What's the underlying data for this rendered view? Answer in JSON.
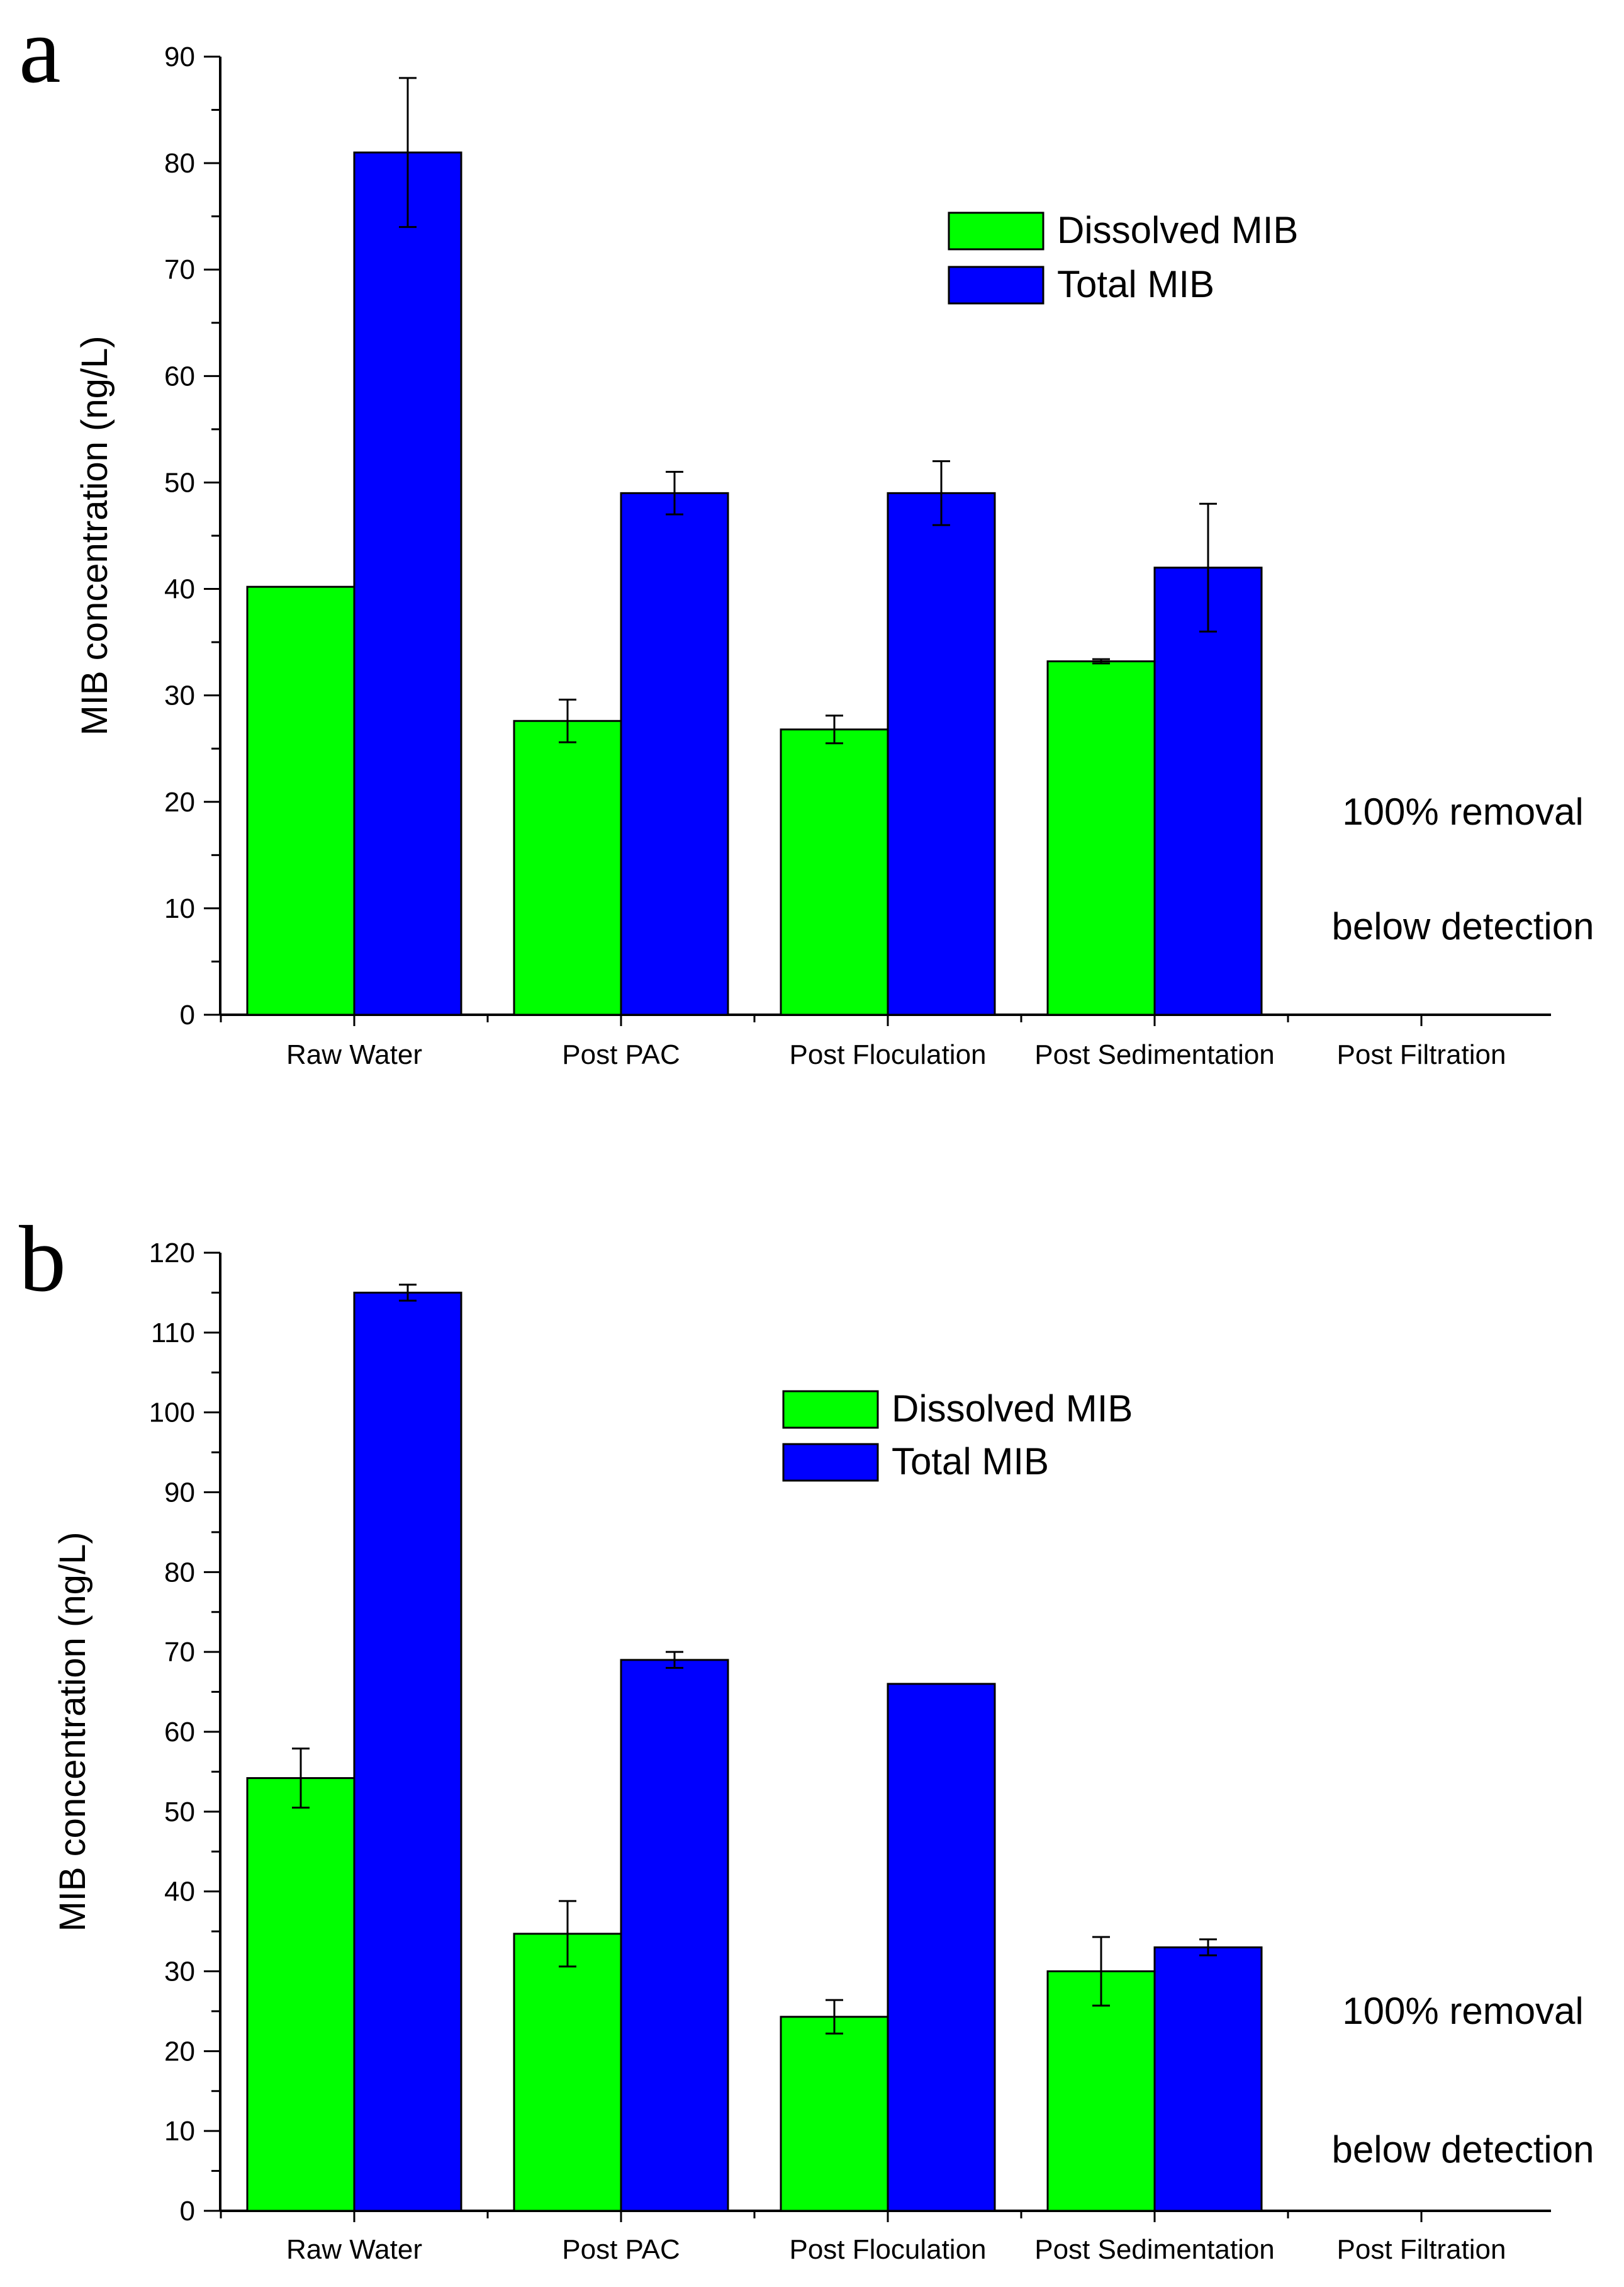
{
  "chart_data": [
    {
      "panel_label": "a",
      "type": "bar",
      "ylabel": "MIB concentration (ng/L)",
      "xlabel": "",
      "ylim": [
        0,
        90
      ],
      "ytick_step": 10,
      "categories": [
        "Raw Water",
        "Post PAC",
        "Post Floculation",
        "Post Sedimentation",
        "Post Filtration"
      ],
      "series": [
        {
          "name": "Dissolved MIB",
          "color": "#00ff00",
          "values": [
            40.2,
            27.6,
            26.8,
            33.2,
            0
          ],
          "errors": [
            0,
            2.0,
            1.3,
            0.2,
            0
          ]
        },
        {
          "name": "Total MIB",
          "color": "#0000ff",
          "values": [
            81,
            49,
            49,
            42,
            0
          ],
          "errors": [
            7,
            2,
            3,
            6,
            0
          ]
        }
      ],
      "legend": "top-right",
      "annotations": [
        "100% removal",
        "below detection"
      ]
    },
    {
      "panel_label": "b",
      "type": "bar",
      "ylabel": "MIB concentration (ng/L)",
      "xlabel": "",
      "ylim": [
        0,
        120
      ],
      "ytick_step": 10,
      "categories": [
        "Raw Water",
        "Post PAC",
        "Post Floculation",
        "Post Sedimentation",
        "Post Filtration"
      ],
      "series": [
        {
          "name": "Dissolved MIB",
          "color": "#00ff00",
          "values": [
            54.2,
            34.7,
            24.3,
            30,
            0
          ],
          "errors": [
            3.7,
            4.1,
            2.1,
            4.3,
            0
          ]
        },
        {
          "name": "Total MIB",
          "color": "#0000ff",
          "values": [
            115,
            69,
            66,
            33,
            0
          ],
          "errors": [
            1,
            1,
            0,
            1,
            0
          ]
        }
      ],
      "legend": "top-center",
      "annotations": [
        "100% removal",
        "below detection"
      ]
    }
  ]
}
